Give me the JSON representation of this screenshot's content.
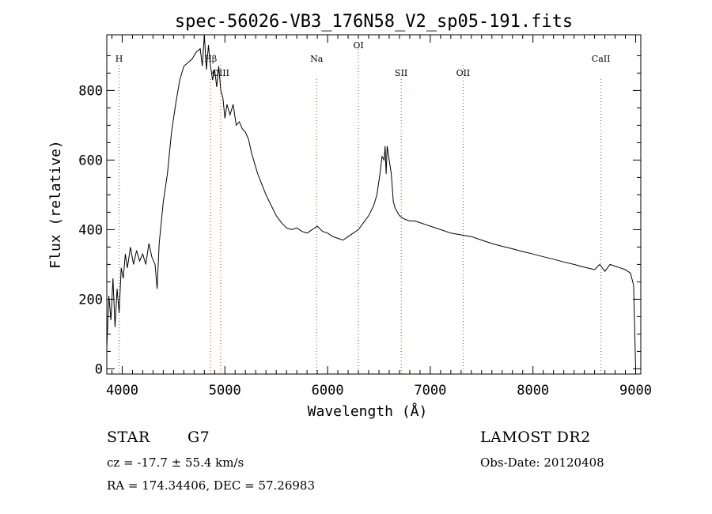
{
  "chart_data": {
    "type": "line",
    "title": "spec-56026-VB3_176N58_V2_sp05-191.fits",
    "xlabel": "Wavelength (Å)",
    "ylabel": "Flux (relative)",
    "xlim": [
      3850,
      9050
    ],
    "ylim": [
      -15,
      960
    ],
    "xticks": [
      4000,
      5000,
      6000,
      7000,
      8000,
      9000
    ],
    "yticks": [
      0,
      200,
      400,
      600,
      800
    ],
    "grid": false,
    "series": [
      {
        "x": [
          3850,
          3870,
          3890,
          3910,
          3930,
          3950,
          3970,
          3990,
          4010,
          4030,
          4050,
          4080,
          4110,
          4140,
          4170,
          4200,
          4230,
          4260,
          4290,
          4320,
          4340,
          4360,
          4400,
          4440,
          4480,
          4520,
          4560,
          4600,
          4640,
          4680,
          4720,
          4760,
          4780,
          4800,
          4820,
          4840,
          4860,
          4880,
          4900,
          4920,
          4940,
          4960,
          4980,
          5000,
          5020,
          5050,
          5080,
          5110,
          5140,
          5170,
          5200,
          5230,
          5260,
          5290,
          5320,
          5360,
          5400,
          5450,
          5500,
          5550,
          5600,
          5650,
          5700,
          5750,
          5800,
          5850,
          5900,
          5950,
          6000,
          6050,
          6100,
          6150,
          6200,
          6250,
          6300,
          6350,
          6400,
          6450,
          6480,
          6510,
          6530,
          6550,
          6560,
          6570,
          6580,
          6600,
          6620,
          6640,
          6660,
          6680,
          6700,
          6750,
          6800,
          6850,
          6900,
          6950,
          7000,
          7100,
          7200,
          7300,
          7400,
          7500,
          7600,
          7700,
          7800,
          7900,
          8000,
          8100,
          8200,
          8300,
          8400,
          8500,
          8600,
          8650,
          8700,
          8750,
          8800,
          8850,
          8900,
          8950,
          8980,
          9000
        ],
        "y": [
          60,
          210,
          140,
          260,
          120,
          230,
          160,
          290,
          260,
          330,
          290,
          350,
          300,
          340,
          310,
          330,
          300,
          360,
          320,
          300,
          230,
          360,
          480,
          560,
          680,
          760,
          830,
          870,
          880,
          890,
          910,
          920,
          870,
          960,
          860,
          930,
          870,
          830,
          860,
          810,
          870,
          800,
          780,
          720,
          760,
          730,
          760,
          700,
          710,
          690,
          680,
          660,
          620,
          590,
          560,
          530,
          500,
          470,
          440,
          420,
          405,
          400,
          405,
          395,
          390,
          400,
          410,
          395,
          390,
          380,
          375,
          370,
          380,
          390,
          400,
          420,
          440,
          470,
          500,
          560,
          610,
          600,
          640,
          560,
          640,
          600,
          560,
          480,
          460,
          450,
          440,
          430,
          425,
          425,
          420,
          415,
          410,
          400,
          390,
          385,
          380,
          370,
          360,
          352,
          345,
          337,
          330,
          322,
          315,
          307,
          300,
          292,
          285,
          300,
          280,
          300,
          295,
          290,
          285,
          275,
          240,
          0
        ]
      }
    ],
    "lines": [
      {
        "label": "H",
        "x": 3970
      },
      {
        "label": "Hβ",
        "x": 4861
      },
      {
        "label": "OIII",
        "x": 4959
      },
      {
        "label": "Na",
        "x": 5893
      },
      {
        "label": "OI",
        "x": 6300
      },
      {
        "label": "SII",
        "x": 6717
      },
      {
        "label": "OII",
        "x": 7320
      },
      {
        "label": "CaII",
        "x": 8662
      }
    ]
  },
  "info": {
    "object_class": "STAR",
    "subclass": "G7",
    "cz": "cz = -17.7 ± 55.4 km/s",
    "coords": "RA = 174.34406, DEC =  57.26983",
    "survey": "LAMOST DR2",
    "obs_date": "Obs-Date: 20120408"
  }
}
